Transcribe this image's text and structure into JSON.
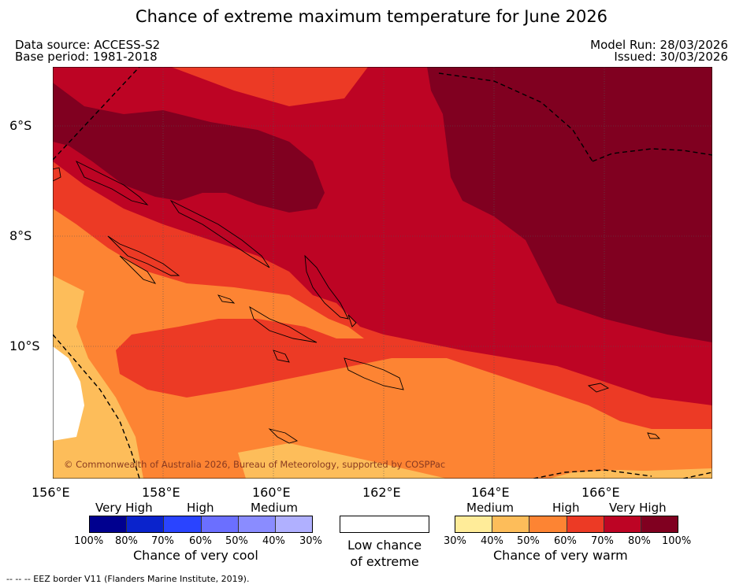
{
  "title": "Chance of extreme maximum temperature for June 2026",
  "meta": {
    "data_source": "Data source: ACCESS-S2",
    "base_period": "Base period: 1981-2018",
    "model_run": "Model Run: 28/03/2026",
    "issued": "Issued: 30/03/2026"
  },
  "axes": {
    "lat_labels": [
      "6°S",
      "8°S",
      "10°S"
    ],
    "lon_labels": [
      "156°E",
      "158°E",
      "160°E",
      "162°E",
      "164°E",
      "166°E"
    ]
  },
  "copyright": "© Commonwealth of Australia 2026, Bureau of Meteorology, supported by COSPPac",
  "legend_cool": {
    "categories": [
      "Very High",
      "High",
      "Medium"
    ],
    "ticks": [
      "100%",
      "80%",
      "70%",
      "60%",
      "50%",
      "40%",
      "30%"
    ],
    "title": "Chance of very cool",
    "colors": [
      "#00008f",
      "#0a23cc",
      "#2a44ff",
      "#6b6fff",
      "#8a8cff",
      "#b0b0ff"
    ]
  },
  "legend_low": {
    "title_line1": "Low chance",
    "title_line2": "of extreme"
  },
  "legend_warm": {
    "categories": [
      "Medium",
      "High",
      "Very High"
    ],
    "ticks": [
      "30%",
      "40%",
      "50%",
      "60%",
      "70%",
      "80%",
      "100%"
    ],
    "title": "Chance of very warm",
    "colors": [
      "#ffec99",
      "#fdbd5a",
      "#fd8433",
      "#ec3a25",
      "#bd0424",
      "#800020"
    ]
  },
  "footnote": "--  --  -- EEZ border V11 (Flanders Marine Institute, 2019)."
}
